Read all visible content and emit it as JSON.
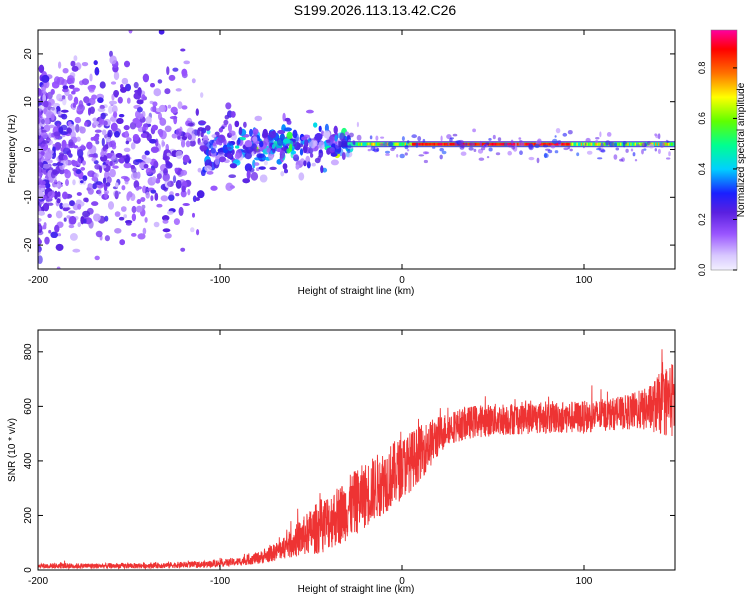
{
  "title": "S199.2026.113.13.42.C26",
  "chart_data": [
    {
      "type": "heatmap",
      "name": "spectrogram",
      "xlabel": "Height of straight line (km)",
      "ylabel": "Frequency (Hz)",
      "xlim": [
        -200,
        150
      ],
      "ylim": [
        -25,
        25
      ],
      "xticks": [
        -200,
        -100,
        0,
        100
      ],
      "yticks": [
        -20,
        -10,
        0,
        10,
        20
      ],
      "colorbar": {
        "label": "Normalized spectral amplitude",
        "range": [
          0.0,
          0.95
        ],
        "ticks": [
          0.0,
          0.2,
          0.4,
          0.6,
          0.8
        ],
        "tick_labels": [
          "0.0",
          "0.2",
          "0.4",
          "0.6",
          "0.8"
        ],
        "colormap": "rainbow (white-violet-blue-cyan-green-yellow-red-magenta)"
      },
      "features": {
        "carrier_line_frequency_hz": 1,
        "carrier_line_start_km": -35,
        "scatter_region_km": [
          -200,
          -30
        ],
        "scatter_frequency_spread_hz": 25
      }
    },
    {
      "type": "line",
      "name": "snr",
      "xlabel": "Height of straight line (km)",
      "ylabel": "SNR (10 * v/v)",
      "xlim": [
        -200,
        150
      ],
      "ylim": [
        0,
        880
      ],
      "xticks": [
        -200,
        -100,
        0,
        100
      ],
      "yticks": [
        0,
        200,
        400,
        600,
        800
      ],
      "series": [
        {
          "name": "SNR",
          "color": "#ee3333",
          "x": [
            -200,
            -150,
            -110,
            -90,
            -75,
            -65,
            -55,
            -45,
            -35,
            -25,
            -15,
            -5,
            5,
            15,
            25,
            40,
            60,
            80,
            100,
            120,
            135,
            145,
            150
          ],
          "mean": [
            15,
            15,
            20,
            30,
            50,
            80,
            120,
            160,
            200,
            250,
            300,
            350,
            400,
            460,
            520,
            545,
            555,
            560,
            560,
            575,
            590,
            620,
            620
          ],
          "spread": [
            10,
            10,
            12,
            15,
            25,
            40,
            70,
            100,
            110,
            120,
            120,
            120,
            110,
            90,
            60,
            60,
            60,
            60,
            60,
            60,
            80,
            130,
            150
          ]
        }
      ]
    }
  ]
}
